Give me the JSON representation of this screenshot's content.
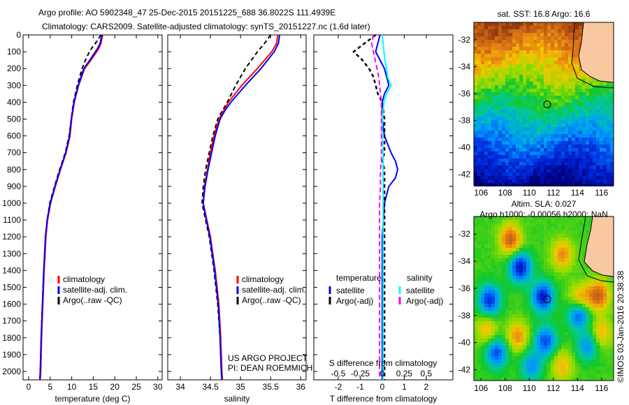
{
  "title": {
    "line1": "Argo profile: AO 5902348_47 25-Dec-2015 20151225_688 36.8022S 111.4939E",
    "line2": "Climatology: CARS2009. Satellite-adjusted climatology: synTS_20151227.nc (1.6d later)"
  },
  "watermark": "©IMOS 03-Jan-2016 20:38:38",
  "colors": {
    "climatology": "#ff0000",
    "satellite": "#0000ff",
    "argo": "#000000",
    "salinity_satellite": "#00ffff",
    "salinity_argo": "#ff00ff"
  },
  "chart_data": [
    {
      "type": "line",
      "xlabel": "temperature (deg C)",
      "ylabel": "",
      "xlim": [
        -1.3,
        31
      ],
      "ylim": [
        2050,
        0
      ],
      "xticks": [
        "0",
        "5",
        "10",
        "15",
        "20",
        "25",
        "30"
      ],
      "xtick_values": [
        0,
        5,
        10,
        15,
        20,
        25,
        30
      ],
      "yticks": [
        "0",
        "100",
        "200",
        "300",
        "400",
        "500",
        "600",
        "700",
        "800",
        "900",
        "1000",
        "1100",
        "1200",
        "1300",
        "1400",
        "1500",
        "1600",
        "1700",
        "1800",
        "1900",
        "2000"
      ],
      "ytick_values": [
        0,
        100,
        200,
        300,
        400,
        500,
        600,
        700,
        800,
        900,
        1000,
        1100,
        1200,
        1300,
        1400,
        1500,
        1600,
        1700,
        1800,
        1900,
        2000
      ],
      "legend": [
        "climatology",
        "satellite-adj. clim.",
        "Argo(..raw -QC)"
      ],
      "depth": [
        0,
        50,
        80,
        100,
        150,
        200,
        300,
        400,
        500,
        600,
        700,
        800,
        900,
        1000,
        1100,
        1200,
        1400,
        1600,
        1800,
        2000,
        2050
      ],
      "series": [
        {
          "name": "climatology",
          "values": [
            17.2,
            16.8,
            16.3,
            15.8,
            14.5,
            13.0,
            11.6,
            10.6,
            10.0,
            9.6,
            8.7,
            7.4,
            6.2,
            5.1,
            4.4,
            4.0,
            3.6,
            3.3,
            3.0,
            2.8,
            2.7
          ]
        },
        {
          "name": "satellite-adj. clim.",
          "values": [
            17.0,
            16.6,
            16.0,
            15.5,
            14.2,
            12.8,
            11.5,
            10.5,
            9.9,
            9.5,
            8.6,
            7.3,
            6.1,
            5.0,
            4.3,
            3.9,
            3.5,
            3.2,
            2.9,
            2.7,
            2.6
          ]
        },
        {
          "name": "Argo(..raw -QC)",
          "values": [
            16.8,
            15.5,
            14.6,
            14.1,
            13.2,
            12.4,
            11.3,
            10.4,
            9.9,
            9.4,
            8.5,
            7.2,
            6.0,
            4.9,
            4.3,
            3.9,
            3.5,
            3.2,
            2.9,
            2.7,
            2.6
          ]
        }
      ]
    },
    {
      "type": "line",
      "xlabel": "salinity",
      "xlim": [
        33.79,
        36.09
      ],
      "ylim": [
        2050,
        0
      ],
      "xticks": [
        "34",
        "34.5",
        "35",
        "35.5",
        "36"
      ],
      "xtick_values": [
        34,
        34.5,
        35,
        35.5,
        36
      ],
      "legend": [
        "climatology",
        "satellite-adj. clim.",
        "Argo(..raw -QC)"
      ],
      "annotation": [
        "US ARGO PROJECT",
        "PI: DEAN ROEMMICH"
      ],
      "depth": [
        0,
        50,
        100,
        200,
        300,
        400,
        450,
        500,
        600,
        700,
        800,
        900,
        1000,
        1100,
        1200,
        1400,
        1600,
        1800,
        2000,
        2050
      ],
      "series": [
        {
          "name": "climatology",
          "values": [
            35.62,
            35.6,
            35.52,
            35.28,
            35.02,
            34.8,
            34.72,
            34.64,
            34.56,
            34.5,
            34.45,
            34.4,
            34.38,
            34.44,
            34.5,
            34.58,
            34.64,
            34.67,
            34.69,
            34.7
          ]
        },
        {
          "name": "satellite-adj. clim.",
          "values": [
            35.65,
            35.63,
            35.56,
            35.34,
            35.08,
            34.84,
            34.74,
            34.66,
            34.58,
            34.52,
            34.46,
            34.41,
            34.38,
            34.43,
            34.49,
            34.57,
            34.63,
            34.66,
            34.68,
            34.69
          ]
        },
        {
          "name": "Argo(..raw -QC)",
          "values": [
            35.5,
            35.4,
            35.28,
            35.08,
            34.92,
            34.78,
            34.7,
            34.62,
            34.54,
            34.48,
            34.42,
            34.38,
            34.36,
            34.42,
            34.48,
            34.56,
            34.62,
            34.66,
            34.68,
            34.69
          ]
        }
      ]
    },
    {
      "type": "line",
      "xlabel": "T difference from climatology",
      "x2label": "S difference from climatology",
      "xlim": [
        -3.11,
        3.21
      ],
      "ylim": [
        2050,
        0
      ],
      "xticks": [
        "-2",
        "-1",
        "0",
        "1",
        "2"
      ],
      "xtick_values": [
        -2,
        -1,
        0,
        1,
        2
      ],
      "x2ticks": [
        "-0.5",
        "-0.25",
        "0",
        "0.25",
        "0.5"
      ],
      "x2tick_values": [
        -0.5,
        -0.25,
        0,
        0.25,
        0.5
      ],
      "legend_headers": [
        "temperature",
        "salinity"
      ],
      "legend": [
        "satellite",
        "Argo(-adj)",
        "satellite",
        "Argo(-adj)"
      ],
      "depth": [
        0,
        50,
        100,
        150,
        200,
        250,
        300,
        350,
        400,
        500,
        600,
        700,
        750,
        800,
        850,
        900,
        1000,
        1200,
        1500,
        1800,
        2000,
        2050
      ],
      "series": [
        {
          "name": "temperature satellite",
          "values": [
            -0.1,
            -0.2,
            -0.3,
            -0.1,
            0.1,
            0.2,
            0.3,
            0.1,
            0,
            0,
            0.1,
            0.4,
            0.6,
            0.7,
            0.6,
            0.3,
            0.1,
            0,
            0,
            0,
            0,
            0
          ]
        },
        {
          "name": "temperature Argo(-adj)",
          "values": [
            -0.3,
            -0.8,
            -1.3,
            -0.9,
            -0.6,
            -0.4,
            -0.3,
            -0.2,
            0,
            0.1,
            0.1,
            0.1,
            0,
            0.1,
            0.1,
            0.1,
            0.1,
            0.1,
            0.1,
            0.1,
            0.1,
            0.1
          ]
        },
        {
          "name": "salinity satellite",
          "values": [
            0,
            0.01,
            0.02,
            0.03,
            0.05,
            0.06,
            0.1,
            0.05,
            0.02,
            0,
            0,
            0.01,
            0.01,
            0.01,
            0.01,
            0.01,
            0.01,
            0.01,
            0.01,
            0.01,
            0.01,
            0.01
          ]
        },
        {
          "name": "salinity Argo(-adj)",
          "values": [
            -0.1,
            -0.12,
            -0.1,
            -0.08,
            -0.06,
            -0.04,
            -0.03,
            -0.02,
            -0.01,
            -0.01,
            -0.01,
            -0.01,
            -0.01,
            -0.02,
            -0.02,
            -0.02,
            -0.03,
            -0.03,
            -0.03,
            -0.03,
            -0.03,
            -0.03
          ]
        }
      ]
    },
    {
      "type": "heatmap",
      "title": "sat. SST: 16.8 Argo: 16.6",
      "xlim": [
        105.4,
        117
      ],
      "ylim": [
        -42.8,
        -30.7
      ],
      "xticks": [
        "106",
        "108",
        "110",
        "112",
        "114",
        "116"
      ],
      "xtick_values": [
        106,
        108,
        110,
        112,
        114,
        116
      ],
      "yticks": [
        "-32",
        "-34",
        "-36",
        "-38",
        "-40",
        "-42"
      ],
      "ytick_values": [
        -32,
        -34,
        -36,
        -38,
        -40,
        -42
      ],
      "marker": {
        "lon": 111.49,
        "lat": -36.8
      }
    },
    {
      "type": "heatmap",
      "title": "Altim. SLA: 0.027",
      "subtitle": "Argo h1000: -0.00056 h2000: NaN",
      "xlim": [
        105.4,
        117
      ],
      "ylim": [
        -42.8,
        -30.7
      ],
      "xticks": [
        "106",
        "108",
        "110",
        "112",
        "114",
        "116"
      ],
      "xtick_values": [
        106,
        108,
        110,
        112,
        114,
        116
      ],
      "yticks": [
        "-32",
        "-34",
        "-36",
        "-38",
        "-40",
        "-42"
      ],
      "ytick_values": [
        -32,
        -34,
        -36,
        -38,
        -40,
        -42
      ],
      "marker": {
        "lon": 111.49,
        "lat": -36.8
      }
    }
  ]
}
